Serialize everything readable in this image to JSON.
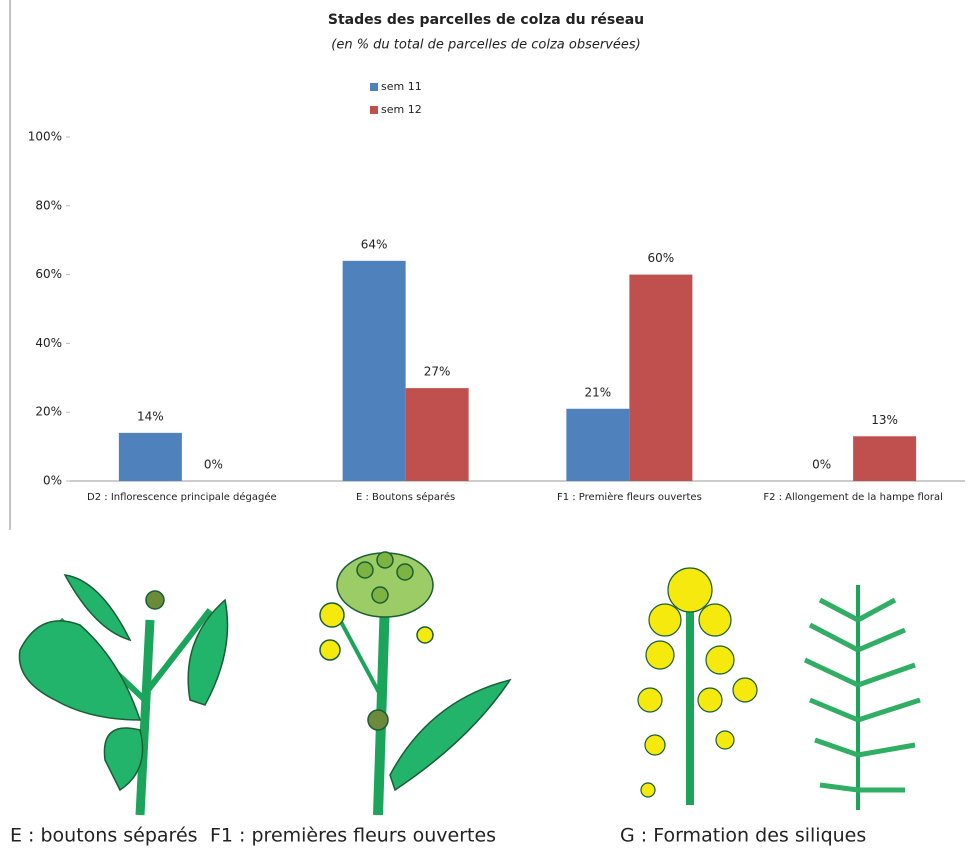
{
  "chart_data": {
    "type": "bar",
    "title": "Stades des parcelles de colza du réseau",
    "subtitle": "(en %  du total de parcelles de colza observées)",
    "categories": [
      "D2 : Inflorescence principale dégagée",
      "E : Boutons séparés",
      "F1 : Première fleurs ouvertes",
      "F2 : Allongement de la hampe floral"
    ],
    "series": [
      {
        "name": "sem 11",
        "color": "#4f81bd",
        "values": [
          14,
          64,
          21,
          0
        ],
        "value_labels": [
          "14%",
          "64%",
          "21%",
          "0%"
        ]
      },
      {
        "name": "sem 12",
        "color": "#c0504d",
        "values": [
          0,
          27,
          60,
          13
        ],
        "value_labels": [
          "0%",
          "27%",
          "60%",
          "13%"
        ]
      }
    ],
    "ylim": [
      0,
      100
    ],
    "yticks": [
      {
        "value": 0,
        "label": "0%"
      },
      {
        "value": 20,
        "label": "20%"
      },
      {
        "value": 40,
        "label": "40%"
      },
      {
        "value": 60,
        "label": "60%"
      },
      {
        "value": 80,
        "label": "80%"
      },
      {
        "value": 100,
        "label": "100%"
      }
    ],
    "grid": false
  },
  "captions": [
    "E : boutons séparés",
    "F1 : premières fleurs ouvertes",
    "G : Formation des siliques"
  ]
}
